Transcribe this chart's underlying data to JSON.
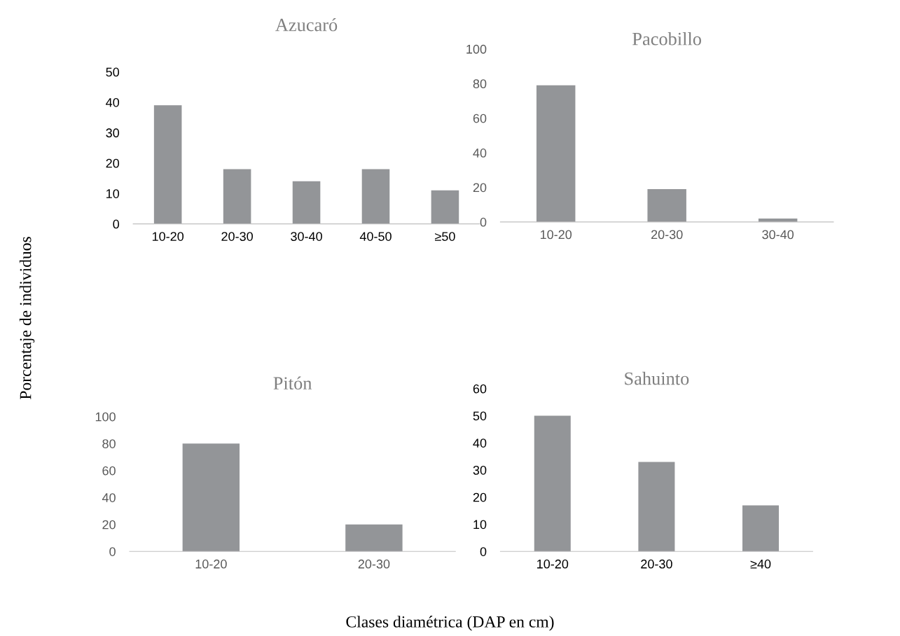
{
  "chart_data": [
    {
      "type": "bar",
      "title": "Azucaró",
      "ylabel": "Porcentaje de individuos",
      "categories": [
        "10-20",
        "20-30",
        "30-40",
        "40-50",
        "≥50"
      ],
      "values": [
        39,
        18,
        14,
        18,
        11
      ],
      "color": "#939598",
      "ylim": [
        0,
        50
      ],
      "yticks": [
        0,
        10,
        20,
        30,
        40,
        50
      ],
      "grid": false
    },
    {
      "type": "bar",
      "title": "Pacobillo",
      "categories": [
        "10-20",
        "20-30",
        "30-40"
      ],
      "values": [
        79,
        19,
        2
      ],
      "color": "#939598",
      "ylim": [
        0,
        100
      ],
      "yticks": [
        0,
        20,
        40,
        60,
        80,
        100
      ],
      "grid": false
    },
    {
      "type": "bar",
      "title": "Pitón",
      "categories": [
        "10-20",
        "20-30"
      ],
      "values": [
        80,
        20
      ],
      "color": "#939598",
      "ylim": [
        0,
        100
      ],
      "yticks": [
        0,
        20,
        40,
        60,
        80,
        100
      ],
      "grid": false
    },
    {
      "type": "bar",
      "title": "Sahuinto",
      "xlabel": "Clases diamétrica (DAP en cm)",
      "categories": [
        "10-20",
        "20-30",
        "≥40"
      ],
      "values": [
        50,
        33,
        17
      ],
      "color": "#939598",
      "ylim": [
        0,
        60
      ],
      "yticks": [
        0,
        10,
        20,
        30,
        40,
        50,
        60
      ],
      "grid": false
    }
  ]
}
